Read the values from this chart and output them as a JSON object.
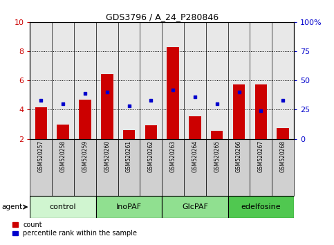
{
  "title": "GDS3796 / A_24_P280846",
  "samples": [
    "GSM520257",
    "GSM520258",
    "GSM520259",
    "GSM520260",
    "GSM520261",
    "GSM520262",
    "GSM520263",
    "GSM520264",
    "GSM520265",
    "GSM520266",
    "GSM520267",
    "GSM520268"
  ],
  "count_values": [
    4.15,
    3.0,
    4.7,
    6.45,
    2.6,
    2.95,
    8.3,
    3.55,
    2.55,
    5.75,
    5.75,
    2.75
  ],
  "percentile_values": [
    33,
    30,
    39,
    40,
    28,
    33,
    42,
    36,
    30,
    40,
    24,
    33
  ],
  "groups": [
    {
      "label": "control",
      "start": 0,
      "end": 3,
      "color": "#d0f5d0"
    },
    {
      "label": "InoPAF",
      "start": 3,
      "end": 6,
      "color": "#90e090"
    },
    {
      "label": "GlcPAF",
      "start": 6,
      "end": 9,
      "color": "#90e090"
    },
    {
      "label": "edelfosine",
      "start": 9,
      "end": 12,
      "color": "#50c850"
    }
  ],
  "ylim_left": [
    2,
    10
  ],
  "ylim_right": [
    0,
    100
  ],
  "yticks_left": [
    2,
    4,
    6,
    8,
    10
  ],
  "yticks_right": [
    0,
    25,
    50,
    75,
    100
  ],
  "bar_color": "#cc0000",
  "dot_color": "#0000cc",
  "bar_width": 0.55,
  "plot_bg_color": "#e8e8e8",
  "label_bg_color": "#d0d0d0",
  "grid_color": "black",
  "left_tick_color": "#cc0000",
  "right_tick_color": "#0000cc",
  "figsize": [
    4.83,
    3.54
  ],
  "dpi": 100
}
